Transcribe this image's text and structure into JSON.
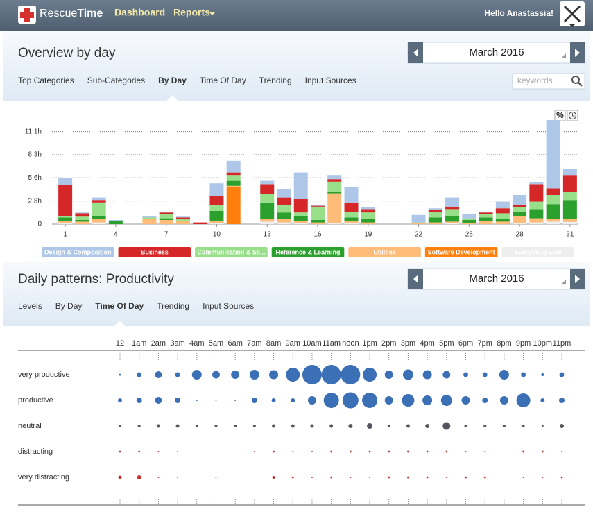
{
  "nav": {
    "brand_a": "Rescue",
    "brand_b": "Time",
    "links": [
      "Dashboard",
      "Reports"
    ],
    "greeting": "Hello Anastassia!"
  },
  "overview": {
    "title": "Overview by day",
    "month": "March 2016",
    "tabs": [
      "Top Categories",
      "Sub-Categories",
      "By Day",
      "Time Of Day",
      "Trending",
      "Input Sources"
    ],
    "active_tab": 2,
    "search_placeholder": "keywords",
    "toggle": "%"
  },
  "patterns": {
    "title": "Daily patterns: Productivity",
    "month": "March 2016",
    "tabs": [
      "Levels",
      "By Day",
      "Time Of Day",
      "Trending",
      "Input Sources"
    ],
    "active_tab": 2
  },
  "chart_data": [
    {
      "type": "bar",
      "stacked": true,
      "categories": [
        "1",
        null,
        null,
        "4",
        null,
        null,
        "7",
        null,
        null,
        "10",
        null,
        null,
        "13",
        null,
        null,
        "16",
        null,
        null,
        "19",
        null,
        null,
        "22",
        null,
        null,
        "25",
        null,
        null,
        "28",
        null,
        null,
        "31"
      ],
      "series": [
        {
          "name": "Design & Composition",
          "color": "#aec7e8",
          "values": [
            0.8,
            0.1,
            0.3,
            0.1,
            0,
            0.2,
            0.1,
            0.1,
            0,
            1.5,
            1.4,
            0,
            0.4,
            1.0,
            3.2,
            0.1,
            0.5,
            1.9,
            0.2,
            0,
            0,
            0.9,
            0.2,
            1.1,
            0.5,
            0.1,
            0.8,
            1.2,
            0.2,
            8.2,
            0.7
          ]
        },
        {
          "name": "Business",
          "color": "#d62728",
          "values": [
            3.7,
            0.4,
            0.3,
            0,
            0,
            0,
            0.2,
            0.2,
            0.2,
            1.1,
            0.3,
            0,
            1.2,
            0.9,
            1.6,
            0.1,
            0.3,
            1.1,
            0.4,
            0,
            0,
            0,
            0.2,
            0.3,
            0,
            0.2,
            0.6,
            0.3,
            2.1,
            0.8,
            2.0
          ]
        },
        {
          "name": "Communication & Sc...",
          "color": "#98df8a",
          "values": [
            0.2,
            0.4,
            1.6,
            0,
            0,
            0.2,
            0.5,
            0.2,
            0,
            0.7,
            0.7,
            0,
            1.0,
            0.9,
            0.4,
            1.6,
            1.2,
            0.7,
            0.8,
            0,
            0,
            0.1,
            0.7,
            0.8,
            0.2,
            0.4,
            0.7,
            0.5,
            0.9,
            1.1,
            1.0
          ]
        },
        {
          "name": "Reference & Learning",
          "color": "#2ca02c",
          "values": [
            0.4,
            0.2,
            0.4,
            0.4,
            0,
            0,
            0.2,
            0,
            0,
            1.2,
            0.6,
            0,
            2.0,
            0.8,
            0.6,
            0.3,
            0.2,
            0.4,
            0.4,
            0,
            0,
            0,
            0.6,
            0.7,
            0.4,
            0.4,
            0.3,
            0.5,
            1.1,
            1.8,
            2.3
          ]
        },
        {
          "name": "Utilities",
          "color": "#ffbb78",
          "values": [
            0.3,
            0.3,
            0.4,
            0,
            0,
            0.6,
            0.5,
            0.4,
            0,
            0.3,
            0.1,
            0,
            0.3,
            0.4,
            0.3,
            0.2,
            3.6,
            0.3,
            0.2,
            0,
            0,
            0.1,
            0.2,
            0.2,
            0.1,
            0.4,
            0.3,
            0.9,
            0.5,
            0.3,
            0.2
          ]
        },
        {
          "name": "Software Development",
          "color": "#ff7f0e",
          "values": [
            0,
            0,
            0,
            0,
            0,
            0,
            0,
            0,
            0,
            0,
            4.5,
            0,
            0,
            0,
            0,
            0,
            0,
            0,
            0,
            0,
            0,
            0,
            0,
            0,
            0,
            0,
            0,
            0,
            0,
            0,
            0.1
          ]
        },
        {
          "name": "Everything Else",
          "color": "#eeeeee",
          "values": [
            0.1,
            0,
            0.2,
            0,
            0,
            0,
            0,
            0,
            0,
            0.1,
            0,
            0,
            0.3,
            0.2,
            0.1,
            0,
            0.1,
            0.1,
            0,
            0,
            0,
            0,
            0,
            0.1,
            0,
            0,
            0,
            0.1,
            0.2,
            0.3,
            0.3
          ]
        }
      ],
      "ylim": [
        0,
        12.5
      ],
      "yticks": [
        0,
        {
          "value": 2.78,
          "label": "2.8h"
        },
        {
          "value": 5.56,
          "label": "5.6h"
        },
        {
          "value": 8.33,
          "label": "8.3h"
        },
        {
          "value": 11.11,
          "label": "11.1h"
        }
      ],
      "grid": true
    },
    {
      "type": "bubble",
      "categories": [
        "12",
        "1am",
        "2am",
        "3am",
        "4am",
        "5am",
        "6am",
        "7am",
        "8am",
        "9am",
        "10am",
        "11am",
        "noon",
        "1pm",
        "2pm",
        "3pm",
        "4pm",
        "5pm",
        "6pm",
        "7pm",
        "8pm",
        "9pm",
        "10pm",
        "11pm"
      ],
      "series": [
        {
          "name": "very productive",
          "color": "#3b6fb6",
          "values": [
            2,
            12,
            25,
            12,
            49,
            30,
            36,
            49,
            42,
            100,
            196,
            196,
            196,
            100,
            36,
            56,
            42,
            30,
            12,
            12,
            49,
            12,
            4,
            12
          ]
        },
        {
          "name": "productive",
          "color": "#3b6fb6",
          "values": [
            9,
            16,
            25,
            16,
            1,
            1,
            1,
            16,
            9,
            9,
            36,
            121,
            132,
            121,
            36,
            81,
            49,
            64,
            36,
            16,
            36,
            100,
            9,
            16
          ]
        },
        {
          "name": "neutral",
          "color": "#55555f",
          "values": [
            4,
            4,
            6,
            6,
            4,
            4,
            4,
            4,
            6,
            6,
            6,
            6,
            9,
            16,
            4,
            6,
            9,
            30,
            4,
            4,
            4,
            4,
            2,
            9
          ]
        },
        {
          "name": "distracting",
          "color": "#b5403d",
          "values": [
            2,
            2,
            1,
            1,
            0,
            0,
            0,
            1,
            2,
            1,
            1,
            2,
            2,
            2,
            2,
            2,
            2,
            2,
            1,
            1,
            0,
            2,
            2,
            1
          ]
        },
        {
          "name": "very distracting",
          "color": "#c9302c",
          "values": [
            6,
            9,
            1,
            1,
            0,
            1,
            0,
            0,
            4,
            2,
            1,
            2,
            1,
            1,
            2,
            2,
            2,
            1,
            2,
            2,
            0,
            1,
            1,
            2
          ]
        }
      ]
    }
  ]
}
